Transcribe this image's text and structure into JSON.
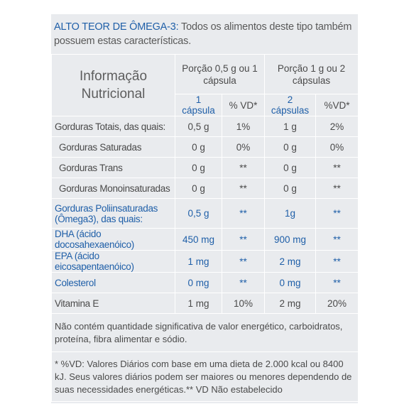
{
  "intro": {
    "highlight": "ALTO TEOR DE ÔMEGA-3:",
    "text": " Todos os alimentos deste tipo também possuem estas características."
  },
  "table": {
    "title": "Informação Nutricional",
    "portion1": "Porção 0,5 g ou 1 cápsula",
    "portion2": "Porção 1 g ou 2 cápsulas",
    "col1": "1 cápsula",
    "col2": "% VD*",
    "col3": "2 cápsulas",
    "col4": "%VD*",
    "rows": [
      {
        "label": "Gorduras Totais, das quais:",
        "v1": "0,5 g",
        "v2": "1%",
        "v3": "1 g",
        "v4": "2%"
      },
      {
        "label": "Gorduras Saturadas",
        "v1": "0 g",
        "v2": "0%",
        "v3": "0 g",
        "v4": "0%"
      },
      {
        "label": "Gorduras Trans",
        "v1": "0 g",
        "v2": "**",
        "v3": "0 g",
        "v4": "**"
      },
      {
        "label": "Gorduras Monoinsaturadas",
        "v1": "0 g",
        "v2": "**",
        "v3": "0 g",
        "v4": "**"
      },
      {
        "label": "Gorduras Poliinsaturadas (Ômega3), das quais:",
        "v1": "0,5 g",
        "v2": "**",
        "v3": "1g",
        "v4": "**"
      },
      {
        "label": "DHA (ácido docosahexaenóico)",
        "v1": "450 mg",
        "v2": "**",
        "v3": "900 mg",
        "v4": "**"
      },
      {
        "label": "EPA (ácido eicosapentaenóico)",
        "v1": "1 mg",
        "v2": "**",
        "v3": "2 mg",
        "v4": "**"
      },
      {
        "label": "Colesterol",
        "v1": "0 mg",
        "v2": "**",
        "v3": "0 mg",
        "v4": "**"
      },
      {
        "label": "Vitamina E",
        "v1": "1 mg",
        "v2": "10%",
        "v3": "2 mg",
        "v4": "20%"
      }
    ],
    "footnote1": "Não contém quantidade significativa de valor energético, carboidratos, proteína, fibra alimentar e sódio.",
    "footnote2": "* %VD: Valores Diários com base em uma dieta de 2.000 kcal ou 8400 kJ. Seus valores diários podem ser maiores ou menores dependendo de suas necessidades energéticas.** VD Não estabelecido"
  },
  "colors": {
    "background": "#e9ebee",
    "accent": "#1f5fa8",
    "text": "#4a4a4a"
  }
}
